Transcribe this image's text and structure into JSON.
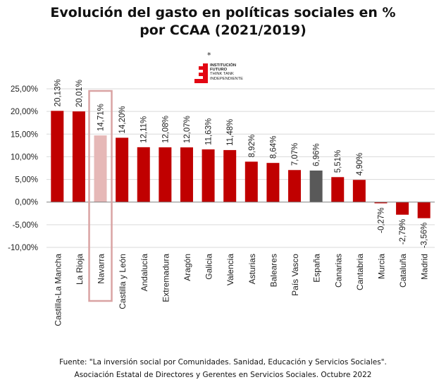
{
  "chart_data": {
    "type": "bar",
    "title_line1": "Evolución del gasto en políticas sociales en %",
    "title_line2": "por CCAA (2021/2019)",
    "xlabel": "",
    "ylabel": "",
    "ylim": [
      -10,
      25
    ],
    "yticks": [
      25,
      20,
      15,
      10,
      5,
      0,
      -5,
      -10
    ],
    "ytick_labels": [
      "25,00%",
      "20,00%",
      "15,00%",
      "10,00%",
      "5,00%",
      "0,00%",
      "-5,00%",
      "-10,00%"
    ],
    "grid": true,
    "categories": [
      "Castilla-La Mancha",
      "La Rioja",
      "Navarra",
      "Castilla y León",
      "Andalucía",
      "Extremadura",
      "Aragón",
      "Galicia",
      "Valencia",
      "Asturias",
      "Baleares",
      "País Vasco",
      "España",
      "Canarias",
      "Cantabria",
      "Murcia",
      "Cataluña",
      "Madrid"
    ],
    "values": [
      20.13,
      20.01,
      14.71,
      14.2,
      12.11,
      12.08,
      12.07,
      11.63,
      11.48,
      8.92,
      8.64,
      7.07,
      6.96,
      5.51,
      4.9,
      -0.27,
      -2.79,
      -3.56
    ],
    "data_labels": [
      "20,13%",
      "20,01%",
      "14,71%",
      "14,20%",
      "12,11%",
      "12,08%",
      "12,07%",
      "11,63%",
      "11,48%",
      "8,92%",
      "8,64%",
      "7,07%",
      "6,96%",
      "5,51%",
      "4,90%",
      "-0,27%",
      "-2,79%",
      "-3,56%"
    ],
    "highlighted_category": "Navarra",
    "reference_category": "España",
    "colors": {
      "default_bar": "#C00000",
      "highlight_bar": "#E6B8B7",
      "highlight_box": "#D9A3A3",
      "reference_bar": "#595959",
      "grid": "#D9D9D9",
      "zero_line": "#808080"
    },
    "legend": "none"
  },
  "logo": {
    "star": "*",
    "line1": "INSTITUCIÓN",
    "line2": "FUTURO",
    "line3": "THINK TANK",
    "line4": "INDEPENDIENTE"
  },
  "source": {
    "line1": "Fuente: \"La inversión social por Comunidades. Sanidad, Educación y Servicios Sociales\".",
    "line2": "Asociación Estatal de Directores y Gerentes en Servicios Sociales. Octubre 2022"
  }
}
